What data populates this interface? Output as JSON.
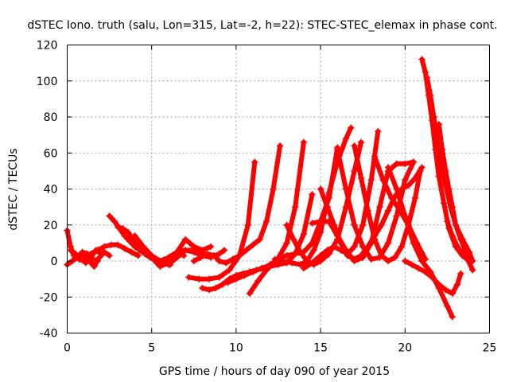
{
  "chart_data": {
    "type": "scatter",
    "title": "dSTEC Iono. truth (salu, Lon=315, Lat=-2, h=22): STEC-STEC_elemax in phase cont.",
    "xlabel": "GPS time / hours of day 090 of year 2015",
    "ylabel": "dSTEC  / TECUs",
    "xlim": [
      0,
      25
    ],
    "ylim": [
      -40,
      120
    ],
    "x_ticks": [
      0,
      5,
      10,
      15,
      20,
      25
    ],
    "y_ticks": [
      -40,
      -20,
      0,
      20,
      40,
      60,
      80,
      100,
      120
    ],
    "grid": true,
    "marker": "plus",
    "color": "#ff0000",
    "series": [
      {
        "x": [
          0.0,
          0.2,
          0.4,
          0.7,
          1.0,
          1.3,
          1.6,
          1.9,
          2.2,
          2.5
        ],
        "values": [
          17,
          8,
          3,
          1,
          3,
          0,
          -3,
          2,
          5,
          3
        ]
      },
      {
        "x": [
          0.0,
          0.3,
          0.6,
          0.9,
          1.2,
          1.5,
          1.8
        ],
        "values": [
          -2,
          0,
          2,
          5,
          4,
          1,
          0
        ]
      },
      {
        "x": [
          0.2,
          0.5,
          0.8,
          1.1,
          1.4,
          1.7,
          2.0
        ],
        "values": [
          6,
          4,
          1,
          -1,
          2,
          6,
          4
        ]
      },
      {
        "x": [
          1.0,
          1.4,
          1.8,
          2.2,
          2.6,
          3.0,
          3.4,
          3.8,
          4.2
        ],
        "values": [
          0,
          4,
          6,
          8,
          9,
          9,
          7,
          5,
          3
        ]
      },
      {
        "x": [
          2.5,
          2.8,
          3.1,
          3.4,
          3.7,
          4.0,
          4.3,
          4.6,
          4.9,
          5.2,
          5.5,
          5.8,
          6.1
        ],
        "values": [
          25,
          22,
          18,
          14,
          11,
          8,
          6,
          4,
          2,
          1,
          0,
          -1,
          -2
        ]
      },
      {
        "x": [
          3.0,
          3.3,
          3.6,
          3.9,
          4.2,
          4.5,
          4.8,
          5.1,
          5.4,
          5.7,
          6.0,
          6.3,
          6.6,
          6.9
        ],
        "values": [
          19,
          18,
          16,
          12,
          9,
          6,
          3,
          1,
          0,
          0,
          1,
          3,
          4,
          3
        ]
      },
      {
        "x": [
          4.0,
          4.5,
          5.0,
          5.5,
          6.0,
          6.5,
          7.0,
          7.5,
          8.0
        ],
        "values": [
          14,
          8,
          3,
          0,
          2,
          5,
          6,
          6,
          5
        ]
      },
      {
        "x": [
          5.0,
          5.5,
          6.0,
          6.5,
          7.0,
          7.5,
          8.0,
          8.5
        ],
        "values": [
          2,
          -3,
          -1,
          5,
          12,
          8,
          6,
          8
        ]
      },
      {
        "x": [
          5.5,
          6.0,
          6.5,
          7.0,
          7.5,
          8.0,
          8.5,
          9.0,
          9.3
        ],
        "values": [
          -1,
          -2,
          2,
          6,
          5,
          3,
          2,
          4,
          6
        ]
      },
      {
        "x": [
          7.2,
          7.8,
          8.4,
          9.0,
          9.6,
          10.2,
          10.7,
          11.1
        ],
        "values": [
          -9,
          -10,
          -10,
          -9,
          -5,
          3,
          20,
          55
        ]
      },
      {
        "x": [
          7.5,
          7.9,
          8.3,
          8.7,
          9.0,
          9.4,
          9.8,
          10.2,
          10.6,
          11.0,
          11.4,
          11.8,
          12.2,
          12.6
        ],
        "values": [
          0,
          2,
          4,
          3,
          0,
          -1,
          1,
          3,
          6,
          9,
          12,
          22,
          40,
          64
        ]
      },
      {
        "x": [
          8.0,
          8.4,
          8.8,
          9.2,
          9.6,
          10.0,
          10.4,
          10.8,
          11.2,
          11.6,
          12.0,
          12.4,
          13.0,
          13.5,
          14.0
        ],
        "values": [
          -15,
          -16,
          -15,
          -13,
          -10,
          -8,
          -7,
          -6,
          -5,
          -4,
          -2,
          0,
          10,
          30,
          66
        ]
      },
      {
        "x": [
          9.5,
          10.0,
          10.5,
          11.0,
          11.5,
          12.0,
          12.5,
          13.0,
          13.5,
          14.0,
          14.5
        ],
        "values": [
          -12,
          -10,
          -8,
          -6,
          -4,
          -3,
          -2,
          -1,
          4,
          15,
          37
        ]
      },
      {
        "x": [
          10.8,
          11.3,
          11.8,
          12.2,
          12.6,
          13.0,
          13.5,
          14.0,
          14.5,
          15.0,
          15.5,
          16.0
        ],
        "values": [
          -18,
          -11,
          -5,
          -1,
          2,
          3,
          4,
          5,
          10,
          22,
          35,
          63
        ]
      },
      {
        "x": [
          12.3,
          12.8,
          13.3,
          13.8,
          14.2,
          14.6,
          15.0,
          15.5,
          16.0,
          16.5,
          16.8
        ],
        "values": [
          1,
          0,
          -1,
          -2,
          0,
          6,
          16,
          38,
          55,
          68,
          74
        ]
      },
      {
        "x": [
          13.0,
          13.4,
          13.8,
          14.2,
          14.6,
          15.0,
          15.5,
          16.0,
          16.5,
          17.0,
          17.4
        ],
        "values": [
          20,
          12,
          5,
          0,
          -2,
          0,
          4,
          12,
          30,
          50,
          66
        ]
      },
      {
        "x": [
          14.0,
          14.5,
          15.0,
          15.4,
          15.8,
          16.2,
          16.6,
          17.0,
          17.5,
          18.0,
          18.4
        ],
        "values": [
          -4,
          -1,
          3,
          6,
          8,
          6,
          4,
          8,
          20,
          45,
          72
        ]
      },
      {
        "x": [
          14.5,
          15.0,
          15.5,
          16.0,
          16.5,
          17.0,
          17.5,
          18.0,
          18.5,
          19.0,
          19.5,
          20.0,
          20.5
        ],
        "values": [
          21,
          22,
          22,
          14,
          6,
          0,
          2,
          10,
          30,
          50,
          54,
          54,
          55
        ]
      },
      {
        "x": [
          15.0,
          15.4,
          15.8,
          16.2,
          16.6,
          17.0,
          17.4,
          17.8,
          18.2,
          18.6,
          19.0,
          19.4,
          19.8,
          20.2,
          20.6,
          21.0
        ],
        "values": [
          40,
          30,
          20,
          10,
          3,
          1,
          3,
          8,
          14,
          20,
          28,
          36,
          40,
          42,
          46,
          52
        ]
      },
      {
        "x": [
          16.0,
          16.5,
          17.0,
          17.5,
          18.0,
          18.5,
          19.0,
          19.5,
          20.0,
          20.5
        ],
        "values": [
          62,
          40,
          20,
          8,
          1,
          2,
          10,
          25,
          45,
          55
        ]
      },
      {
        "x": [
          17.0,
          17.4,
          17.8,
          18.2,
          18.6,
          19.0,
          19.4,
          19.8,
          20.2,
          20.6,
          20.9
        ],
        "values": [
          64,
          46,
          28,
          12,
          3,
          0,
          2,
          8,
          20,
          35,
          50
        ]
      },
      {
        "x": [
          18.2,
          18.7,
          19.2,
          19.7,
          20.2,
          20.7,
          21.2
        ],
        "values": [
          58,
          45,
          35,
          28,
          20,
          10,
          1
        ]
      },
      {
        "x": [
          19.0,
          19.5,
          20.0,
          20.5,
          21.0,
          21.5,
          22.0,
          22.5,
          22.8
        ],
        "values": [
          52,
          40,
          25,
          10,
          0,
          -6,
          -15,
          -25,
          -31
        ]
      },
      {
        "x": [
          20.0,
          20.4,
          20.8,
          21.2,
          21.6,
          22.0,
          22.4,
          22.8,
          23.1,
          23.3
        ],
        "values": [
          0,
          -2,
          -4,
          -6,
          -9,
          -13,
          -16,
          -18,
          -13,
          -7
        ]
      },
      {
        "x": [
          21.0,
          21.2,
          21.4,
          21.6,
          21.8,
          22.0,
          22.3,
          22.6,
          23.0,
          23.4,
          23.8
        ],
        "values": [
          112,
          105,
          92,
          78,
          62,
          47,
          32,
          18,
          8,
          3,
          0
        ]
      },
      {
        "x": [
          21.3,
          21.5,
          21.7,
          21.9,
          22.1,
          22.4,
          22.7,
          23.0,
          23.4,
          23.8,
          24.0
        ],
        "values": [
          102,
          92,
          80,
          68,
          55,
          42,
          30,
          20,
          12,
          5,
          0
        ]
      },
      {
        "x": [
          22.0,
          22.2,
          22.4,
          22.6,
          22.8,
          23.0,
          23.3,
          23.6,
          23.9
        ],
        "values": [
          76,
          62,
          50,
          40,
          30,
          20,
          12,
          5,
          0
        ]
      },
      {
        "x": [
          22.5,
          22.8,
          23.1,
          23.4,
          23.7,
          24.0
        ],
        "values": [
          22,
          14,
          8,
          4,
          1,
          -5
        ]
      }
    ]
  }
}
